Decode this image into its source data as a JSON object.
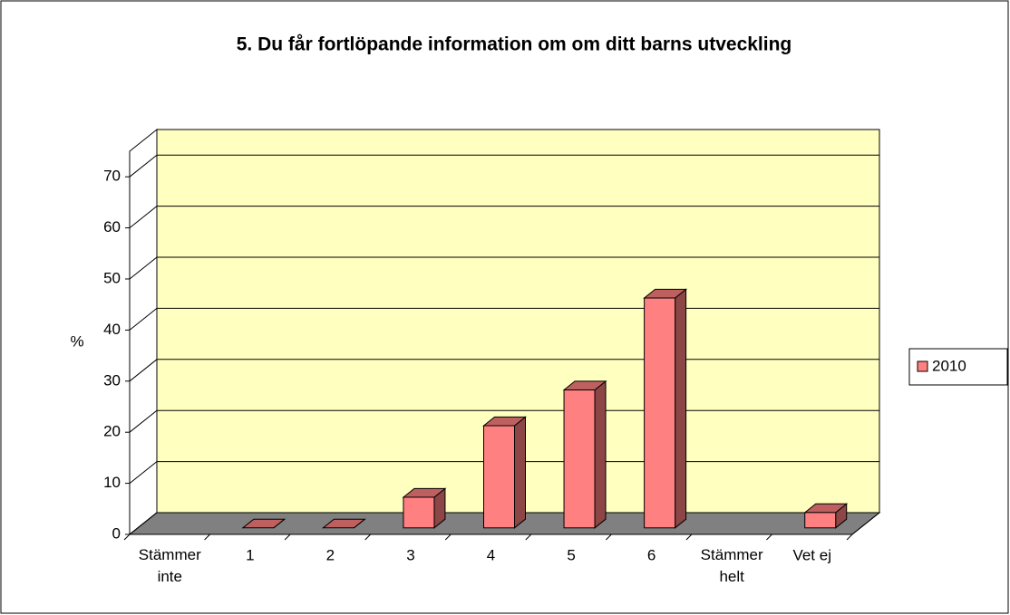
{
  "chart_data": {
    "type": "bar3d",
    "title": "5. Du får fortlöpande information om om ditt barns utveckling",
    "y_label": "%",
    "categories": [
      "Stämmer inte",
      "1",
      "2",
      "3",
      "4",
      "5",
      "6",
      "Stämmer helt",
      "Vet ej"
    ],
    "series": [
      {
        "name": "2010",
        "color": "#ff8080",
        "values": [
          null,
          0,
          0,
          6,
          20,
          27,
          45,
          null,
          3
        ]
      }
    ],
    "ylim": [
      0,
      75
    ],
    "yticks": [
      0,
      10,
      20,
      30,
      40,
      50,
      60,
      70
    ],
    "grid": true,
    "legend": "right"
  }
}
